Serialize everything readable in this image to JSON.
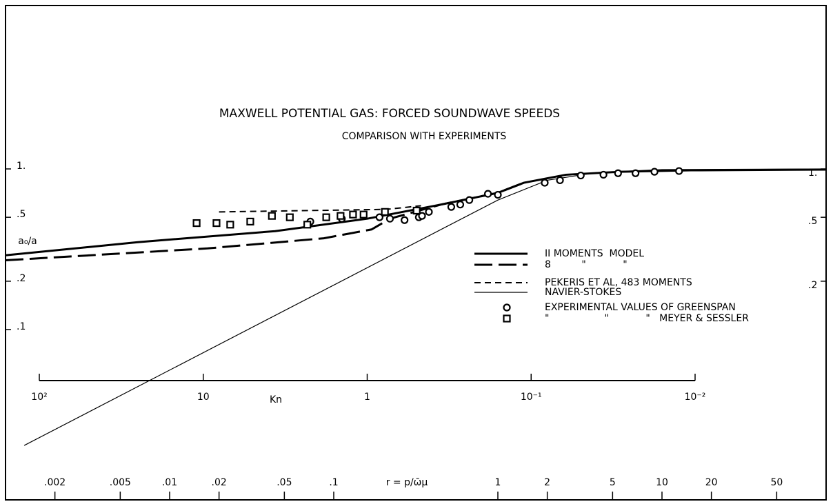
{
  "chart_data": {
    "type": "line",
    "title": "MAXWELL POTENTIAL GAS: FORCED SOUNDWAVE SPEEDS",
    "subtitle": "COMPARISON WITH EXPERIMENTS",
    "xlabel": "r = p/ω̄μ",
    "ylabel": "a₀/a",
    "xscale": "log",
    "yscale": "log",
    "xlim": [
      0.001,
      100
    ],
    "ylim": [
      0.01,
      10
    ],
    "xticks": [
      {
        "value": 0.002,
        "label": ".002"
      },
      {
        "value": 0.005,
        "label": ".005"
      },
      {
        "value": 0.01,
        "label": ".01"
      },
      {
        "value": 0.02,
        "label": ".02"
      },
      {
        "value": 0.05,
        "label": ".05"
      },
      {
        "value": 0.1,
        "label": ".1"
      },
      1,
      2,
      5,
      10,
      20,
      50
    ],
    "yticks": [
      {
        "value": 1,
        "label": "1."
      },
      {
        "value": 0.5,
        "label": ".5"
      },
      {
        "value": 0.2,
        "label": ".2"
      },
      {
        "value": 0.1,
        "label": ".1"
      }
    ],
    "y2lim": [
      0.01,
      10
    ],
    "y2ticks": [
      {
        "value": 1,
        "label": "1."
      },
      {
        "value": 0.5,
        "label": ".5"
      },
      {
        "value": 0.2,
        "label": ".2"
      }
    ],
    "kn_axis": {
      "label": "Kn",
      "lim": [
        100,
        0.01
      ],
      "ticks": [
        {
          "value": 100,
          "label": "10²"
        },
        10,
        1,
        {
          "value": 0.1,
          "label": "10⁻¹"
        },
        {
          "value": 0.01,
          "label": "10⁻²"
        }
      ]
    },
    "series": [
      {
        "name": "II MOMENTS  MODEL",
        "color": "#000",
        "kind": "line",
        "dash": "solid",
        "width": 3,
        "x": [
          0.001,
          0.0064,
          0.044,
          0.16,
          0.45,
          1,
          1.44,
          2.6,
          5.6,
          15,
          100
        ],
        "values": [
          0.29,
          0.35,
          0.41,
          0.49,
          0.6,
          0.71,
          0.82,
          0.92,
          0.96,
          0.98,
          0.99
        ]
      },
      {
        "name": "8          \"            \"",
        "color": "#000",
        "kind": "line",
        "dash": "long",
        "width": 3,
        "x": [
          0.001,
          0.017,
          0.087,
          0.17,
          0.22,
          0.45,
          1,
          1.44
        ],
        "values": [
          0.27,
          0.32,
          0.37,
          0.42,
          0.49,
          0.6,
          0.71,
          0.82
        ]
      },
      {
        "name": "PEKERIS ET AL, 483 MOMENTS",
        "color": "#000",
        "kind": "line",
        "dash": "short",
        "width": 2,
        "x": [
          0.02,
          0.21,
          0.34
        ],
        "values": [
          0.54,
          0.56,
          0.59
        ]
      },
      {
        "name": "NAVIER-STOKES",
        "color": "#000",
        "kind": "line",
        "dash": "solid",
        "width": 1.2,
        "x": [
          0.0013,
          1,
          2,
          4,
          10,
          100
        ],
        "values": [
          0.019,
          0.64,
          0.85,
          0.95,
          0.99,
          1.0
        ]
      },
      {
        "name": "EXPERIMENTAL VALUES OF GREENSPAN",
        "color": "#000",
        "kind": "points",
        "marker": "circle",
        "x": [
          0.072,
          0.112,
          0.19,
          0.22,
          0.27,
          0.33,
          0.345,
          0.38,
          0.52,
          0.59,
          0.67,
          0.87,
          1.0,
          1.93,
          2.39,
          3.2,
          4.4,
          5.4,
          6.9,
          9.0,
          12.7
        ],
        "values": [
          0.47,
          0.49,
          0.5,
          0.49,
          0.48,
          0.5,
          0.51,
          0.54,
          0.58,
          0.6,
          0.64,
          0.7,
          0.69,
          0.82,
          0.85,
          0.91,
          0.92,
          0.94,
          0.94,
          0.96,
          0.97
        ]
      },
      {
        "name": "\"                  \"            \"   MEYER & SESSLER",
        "color": "#000",
        "kind": "points",
        "marker": "square",
        "x": [
          0.0146,
          0.0193,
          0.0234,
          0.031,
          0.042,
          0.054,
          0.069,
          0.09,
          0.11,
          0.131,
          0.152,
          0.205,
          0.32
        ],
        "values": [
          0.46,
          0.46,
          0.45,
          0.47,
          0.51,
          0.5,
          0.45,
          0.5,
          0.51,
          0.52,
          0.52,
          0.54,
          0.55
        ]
      }
    ]
  }
}
